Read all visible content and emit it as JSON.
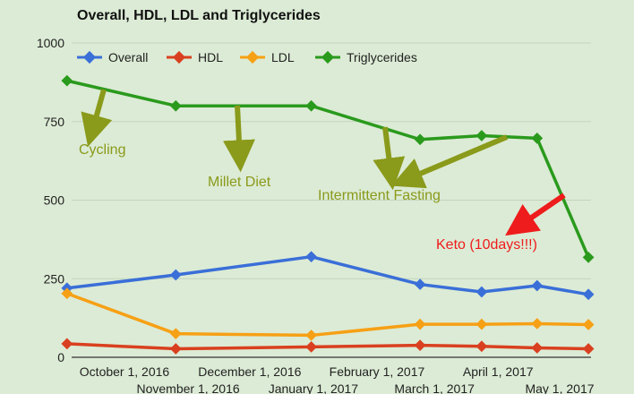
{
  "chart_data": {
    "type": "line",
    "title": "Overall, HDL, LDL and Triglycerides",
    "xlabel": "",
    "ylabel": "",
    "ylim": [
      0,
      1000
    ],
    "y_ticks": [
      0,
      250,
      500,
      750,
      1000
    ],
    "x_ticks_top_row": [
      "October 1, 2016",
      "December 1, 2016",
      "February 1, 2017",
      "April 1, 2017"
    ],
    "x_ticks_bottom_row": [
      "November 1, 2016",
      "January 1, 2017",
      "March 1, 2017",
      "May 1, 2017"
    ],
    "x": [
      "2016-09-03",
      "2016-10-26",
      "2016-12-31",
      "2017-02-22",
      "2017-03-24",
      "2017-04-20",
      "2017-05-15"
    ],
    "series": [
      {
        "name": "Overall",
        "color": "#3a6fd8",
        "values": [
          220,
          262,
          320,
          232,
          208,
          228,
          200
        ]
      },
      {
        "name": "HDL",
        "color": "#d9401f",
        "values": [
          43,
          27,
          33,
          38,
          35,
          30,
          27
        ]
      },
      {
        "name": "LDL",
        "color": "#f6a015",
        "values": [
          203,
          75,
          70,
          105,
          105,
          107,
          104
        ]
      },
      {
        "name": "Triglycerides",
        "color": "#2a9a1d",
        "values": [
          880,
          800,
          800,
          693,
          705,
          697,
          318
        ]
      }
    ],
    "grid": true,
    "legend_position": "top",
    "annotations": [
      {
        "text": "Cycling",
        "color": "#8a9a1a"
      },
      {
        "text": "Millet Diet",
        "color": "#8a9a1a"
      },
      {
        "text": "Intermittent Fasting",
        "color": "#8a9a1a"
      },
      {
        "text": "Keto (10days!!!)",
        "color": "#ee1c1c"
      }
    ],
    "colors": {
      "background": "#dcebd5",
      "grid": "#c2d5bd",
      "annotation_arrow": "#8a9a1a",
      "keto_arrow": "#ee1c1c"
    }
  }
}
